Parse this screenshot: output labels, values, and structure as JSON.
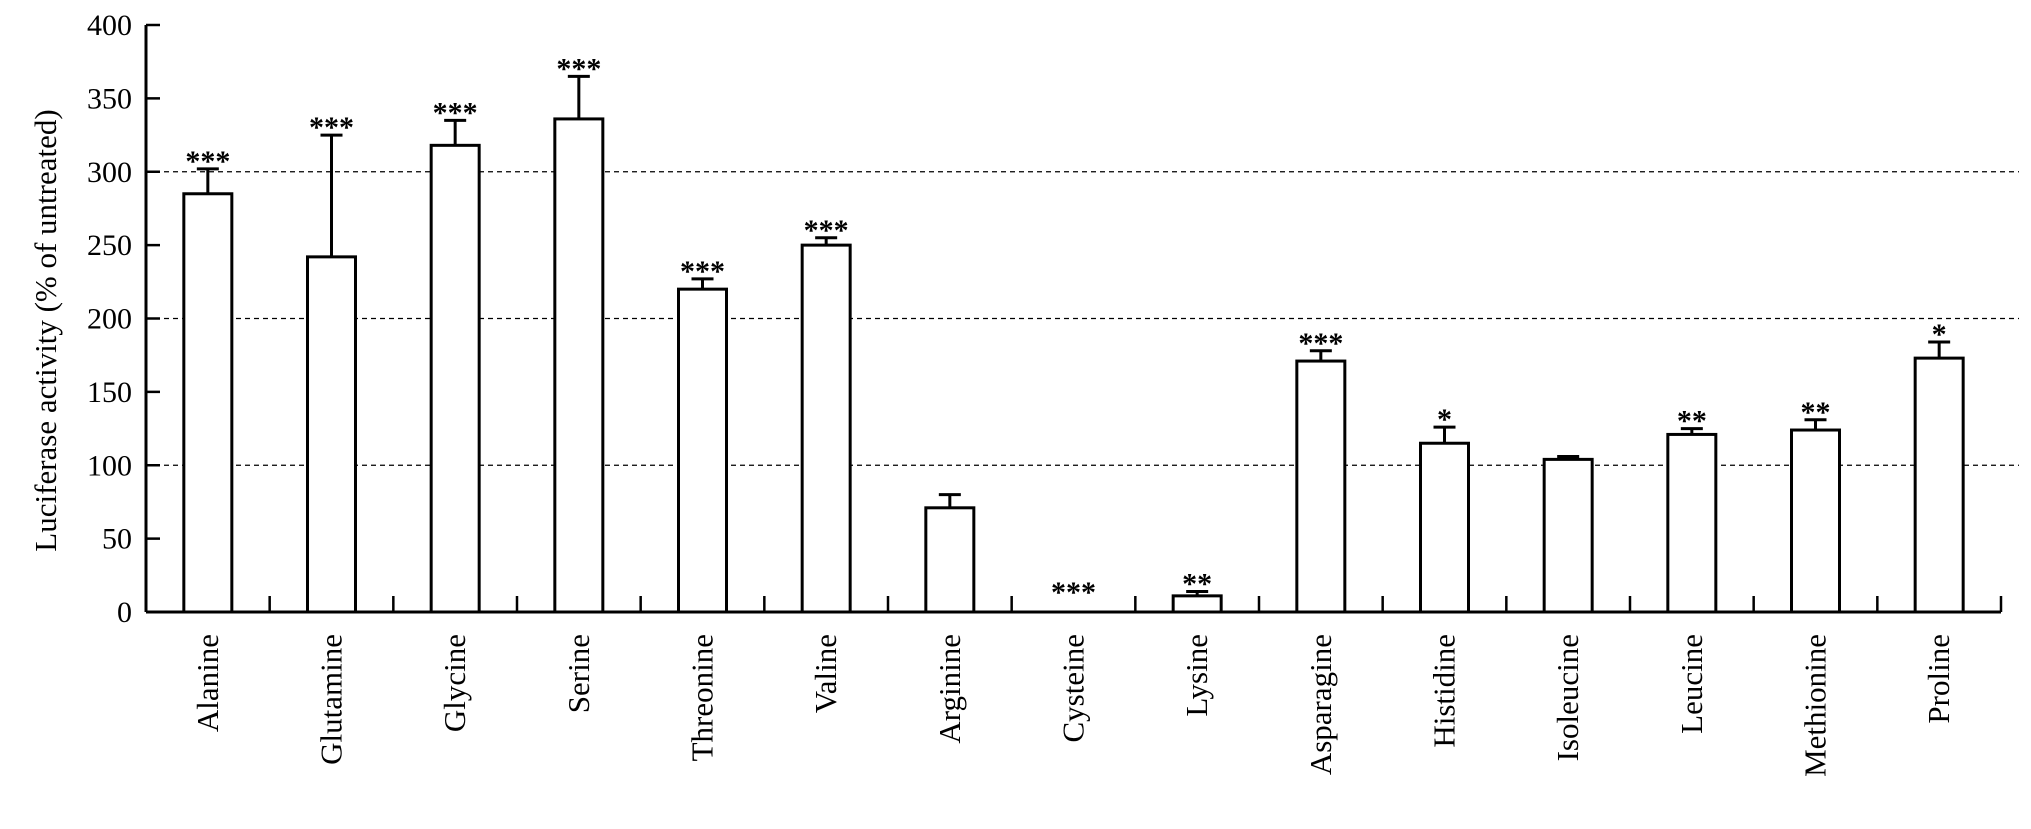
{
  "chart_data": {
    "type": "bar",
    "title": "",
    "ylabel": "Luciferase activity (% of untreated)",
    "xlabel": "",
    "ylim": [
      0,
      400
    ],
    "yticks": [
      0,
      50,
      100,
      150,
      200,
      250,
      300,
      350,
      400
    ],
    "gridlines": [
      100,
      200,
      300
    ],
    "grid": "dashed horizontal at 100, 200, 300",
    "categories": [
      "Alanine",
      "Glutamine",
      "Glycine",
      "Serine",
      "Threonine",
      "Valine",
      "Arginine",
      "Cysteine",
      "Lysine",
      "Asparagine",
      "Histidine",
      "Isoleucine",
      "Leucine",
      "Methionine",
      "Proline"
    ],
    "values": [
      285,
      242,
      318,
      336,
      220,
      250,
      71,
      0,
      11,
      171,
      115,
      104,
      121,
      124,
      173
    ],
    "errors": [
      17,
      83,
      17,
      29,
      7,
      5,
      9,
      0,
      3,
      7,
      11,
      2,
      4,
      7,
      11
    ],
    "significance": [
      "***",
      "***",
      "***",
      "***",
      "***",
      "***",
      "",
      "***",
      "**",
      "***",
      "*",
      "",
      "**",
      "**",
      "*"
    ]
  }
}
